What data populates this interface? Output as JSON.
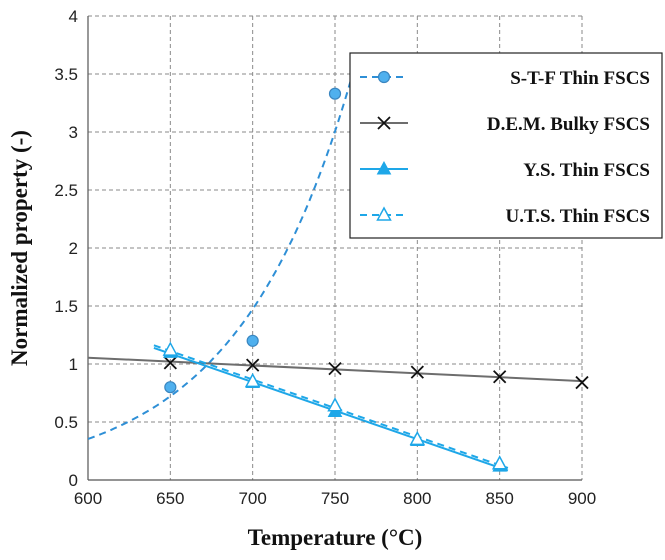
{
  "chart_data": {
    "type": "line",
    "xlabel": "Temperature (°C)",
    "ylabel": "Normalized property (-)",
    "xlim": [
      600,
      900
    ],
    "ylim": [
      0,
      4
    ],
    "xticks": [
      "600",
      "650",
      "700",
      "750",
      "800",
      "850",
      "900"
    ],
    "yticks": [
      "0",
      "0.5",
      "1",
      "1.5",
      "2",
      "2.5",
      "3",
      "3.5",
      "4"
    ],
    "grid": true,
    "legend_position": "top-right",
    "series": [
      {
        "name": "S-T-F Thin FSCS",
        "color": "#2e8fd6",
        "marker": "circle",
        "line": "dashed",
        "x": [
          650,
          700,
          750
        ],
        "y": [
          0.8,
          1.2,
          3.33
        ],
        "trendline": "exponential"
      },
      {
        "name": "D.E.M. Bulky FSCS",
        "color": "#6d6d6d",
        "marker": "x",
        "line": "solid",
        "x": [
          650,
          700,
          750,
          800,
          850,
          900
        ],
        "y": [
          1.01,
          0.99,
          0.96,
          0.93,
          0.89,
          0.84
        ],
        "trendline": "linear"
      },
      {
        "name": "Y.S. Thin FSCS",
        "color": "#1ea7e8",
        "marker": "triangle-filled",
        "line": "solid",
        "x": [
          650,
          700,
          750,
          800,
          850
        ],
        "y": [
          1.1,
          0.84,
          0.59,
          0.34,
          0.12
        ],
        "trendline": "linear"
      },
      {
        "name": "U.T.S. Thin FSCS",
        "color": "#1ea7e8",
        "marker": "triangle-open",
        "line": "dashed",
        "x": [
          650,
          700,
          750,
          800,
          850
        ],
        "y": [
          1.12,
          0.85,
          0.64,
          0.35,
          0.14
        ],
        "trendline": "linear"
      }
    ]
  }
}
